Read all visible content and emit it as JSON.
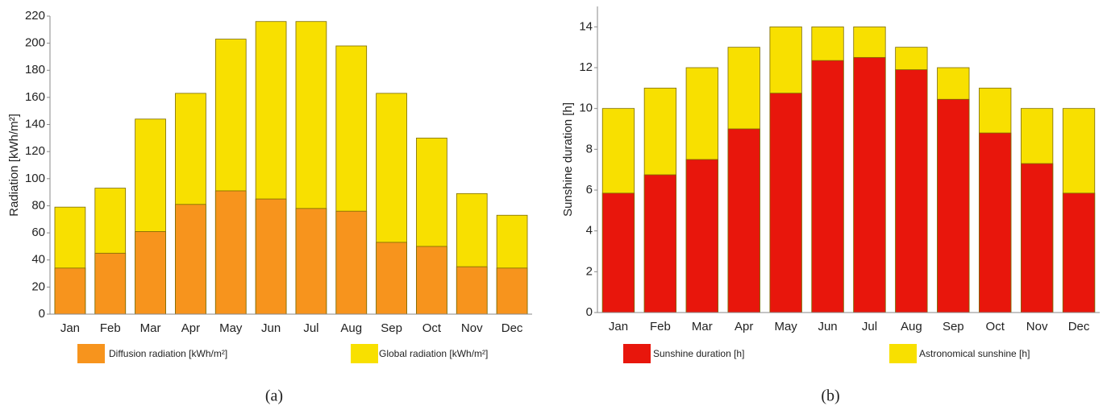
{
  "chart_data": [
    {
      "type": "bar",
      "barmode": "overlay",
      "y_label": "Radiation [kWh/m²]",
      "caption": "(a)",
      "categories": [
        "Jan",
        "Feb",
        "Mar",
        "Apr",
        "May",
        "Jun",
        "Jul",
        "Aug",
        "Sep",
        "Oct",
        "Nov",
        "Dec"
      ],
      "series": [
        {
          "name": "Diffusion radiation [kWh/m²]",
          "color": "#f7941d",
          "values": [
            34,
            45,
            61,
            81,
            91,
            85,
            78,
            76,
            53,
            50,
            35,
            34
          ]
        },
        {
          "name": "Global radiation [kWh/m²]",
          "color": "#f8e000",
          "values": [
            79,
            93,
            144,
            163,
            203,
            216,
            216,
            198,
            163,
            130,
            89,
            73
          ]
        }
      ],
      "ylim": [
        0,
        220
      ],
      "yticks": [
        0,
        20,
        40,
        60,
        80,
        100,
        120,
        140,
        160,
        180,
        200,
        220
      ],
      "grid": false
    },
    {
      "type": "bar",
      "barmode": "overlay",
      "y_label": "Sunshine duration [h]",
      "caption": "(b)",
      "categories": [
        "Jan",
        "Feb",
        "Mar",
        "Apr",
        "May",
        "Jun",
        "Jul",
        "Aug",
        "Sep",
        "Oct",
        "Nov",
        "Dec"
      ],
      "series": [
        {
          "name": "Sunshine duration [h]",
          "color": "#e8160c",
          "values": [
            5.85,
            6.75,
            7.5,
            9,
            10.75,
            12.35,
            12.5,
            11.9,
            10.45,
            8.8,
            7.3,
            5.85
          ]
        },
        {
          "name": "Astronomical sunshine [h]",
          "color": "#f8e000",
          "values": [
            10,
            11,
            12,
            13,
            14,
            14,
            14,
            13,
            12,
            11,
            10,
            10
          ]
        }
      ],
      "ylim": [
        0,
        15
      ],
      "yticks": [
        0,
        2,
        4,
        6,
        8,
        10,
        12,
        14
      ],
      "grid": false
    }
  ]
}
